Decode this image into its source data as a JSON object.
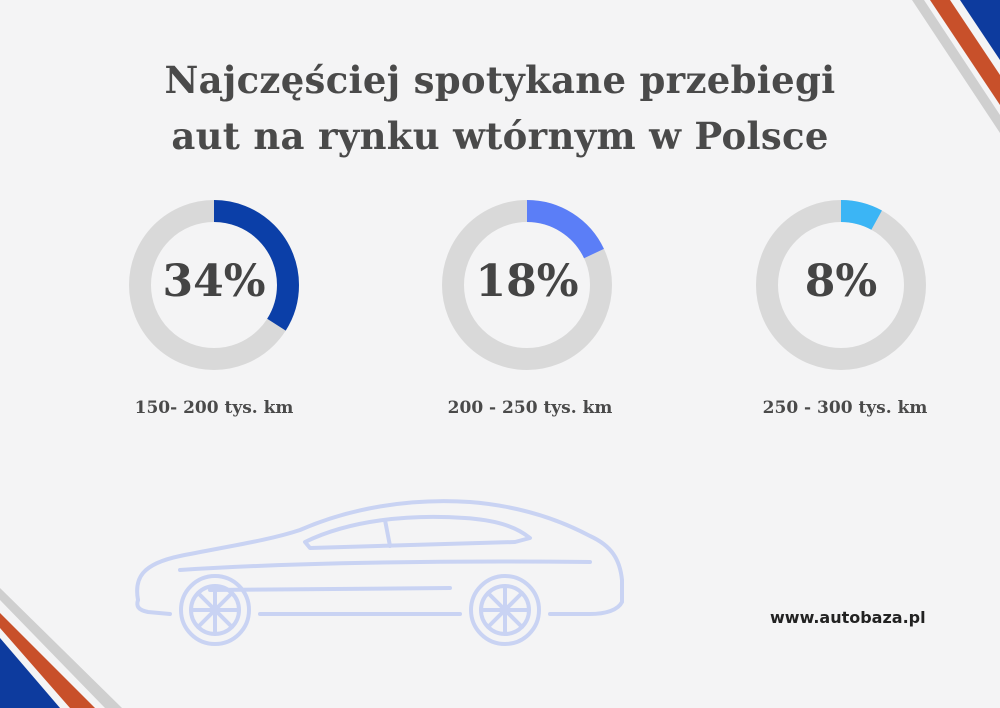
{
  "title": {
    "line1": "Najczęściej spotykane przebiegi",
    "line2": "aut na rynku wtórnym w Polsce"
  },
  "chart_data": {
    "type": "donut",
    "title": "Najczęściej spotykane przebiegi aut na rynku wtórnym w Polsce",
    "items": [
      {
        "label": "150- 200 tys. km",
        "value": 34,
        "value_label": "34%",
        "color": "#0b3fa8"
      },
      {
        "label": "200 - 250 tys. km",
        "value": 18,
        "value_label": "18%",
        "color": "#5b7ef7"
      },
      {
        "label": "250 - 300 tys. km",
        "value": 8,
        "value_label": "8%",
        "color": "#3bb5f5"
      }
    ],
    "track_color": "#d9d9d9"
  },
  "footer": {
    "url": "www.autobaza.pl"
  },
  "decorations": {
    "accent_colors": [
      "#0d3b9e",
      "#c8502a",
      "#c9c9c9"
    ],
    "car_color": "#c9d3f3"
  }
}
